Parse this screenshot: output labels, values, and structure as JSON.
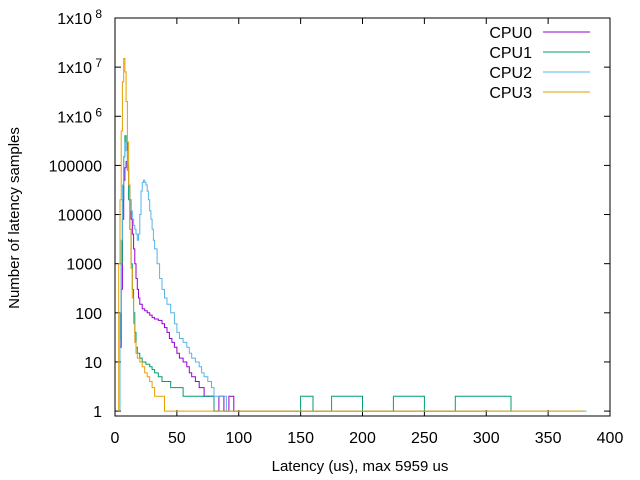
{
  "chart_data": {
    "type": "line",
    "title": "",
    "xlabel": "Latency (us), max 5959 us",
    "ylabel": "Number of latency samples",
    "xlim": [
      0,
      400
    ],
    "ylim_log10": [
      -0.1,
      8
    ],
    "x_ticks": [
      0,
      50,
      100,
      150,
      200,
      250,
      300,
      350,
      400
    ],
    "x_tick_labels": [
      "0",
      "50",
      "100",
      "150",
      "200",
      "250",
      "300",
      "350",
      "400"
    ],
    "y_ticks": [
      {
        "value": 1,
        "label": "1"
      },
      {
        "value": 10,
        "label": "10"
      },
      {
        "value": 100,
        "label": "100"
      },
      {
        "value": 1000,
        "label": "1000"
      },
      {
        "value": 10000,
        "label": "10000"
      },
      {
        "value": 100000,
        "label": "100000"
      },
      {
        "value": 1000000,
        "base": "1x10",
        "exp": "6"
      },
      {
        "value": 10000000,
        "base": "1x10",
        "exp": "7"
      },
      {
        "value": 100000000,
        "base": "1x10",
        "exp": "8"
      }
    ],
    "legend_position": "top-right",
    "series": [
      {
        "name": "CPU0",
        "color": "#9400d3",
        "points": [
          [
            4,
            20
          ],
          [
            5,
            300
          ],
          [
            6,
            8000
          ],
          [
            7,
            50000
          ],
          [
            8,
            90000
          ],
          [
            9,
            120000
          ],
          [
            10,
            80000
          ],
          [
            11,
            40000
          ],
          [
            12,
            20000
          ],
          [
            13,
            8000
          ],
          [
            14,
            4000
          ],
          [
            15,
            2000
          ],
          [
            16,
            1000
          ],
          [
            17,
            500
          ],
          [
            18,
            300
          ],
          [
            19,
            200
          ],
          [
            20,
            150
          ],
          [
            22,
            120
          ],
          [
            24,
            110
          ],
          [
            26,
            100
          ],
          [
            28,
            90
          ],
          [
            30,
            80
          ],
          [
            32,
            75
          ],
          [
            35,
            70
          ],
          [
            38,
            60
          ],
          [
            40,
            50
          ],
          [
            42,
            40
          ],
          [
            44,
            30
          ],
          [
            46,
            25
          ],
          [
            48,
            20
          ],
          [
            50,
            15
          ],
          [
            52,
            12
          ],
          [
            55,
            10
          ],
          [
            58,
            8
          ],
          [
            60,
            6
          ],
          [
            62,
            5
          ],
          [
            65,
            4
          ],
          [
            68,
            3
          ],
          [
            70,
            3
          ],
          [
            72,
            2
          ],
          [
            75,
            2
          ],
          [
            78,
            2
          ],
          [
            80,
            1
          ],
          [
            84,
            2
          ],
          [
            88,
            1
          ],
          [
            92,
            2
          ],
          [
            96,
            1
          ],
          [
            100,
            1
          ],
          [
            110,
            1
          ],
          [
            125,
            1
          ],
          [
            150,
            1
          ],
          [
            175,
            1
          ],
          [
            200,
            1
          ],
          [
            225,
            1
          ],
          [
            255,
            1
          ],
          [
            270,
            1
          ],
          [
            300,
            1
          ]
        ]
      },
      {
        "name": "CPU1",
        "color": "#009e73",
        "points": [
          [
            4,
            30
          ],
          [
            5,
            1000
          ],
          [
            6,
            20000
          ],
          [
            7,
            150000
          ],
          [
            8,
            400000
          ],
          [
            9,
            300000
          ],
          [
            10,
            100000
          ],
          [
            11,
            20000
          ],
          [
            12,
            5000
          ],
          [
            13,
            1000
          ],
          [
            14,
            300
          ],
          [
            15,
            100
          ],
          [
            16,
            40
          ],
          [
            17,
            20
          ],
          [
            18,
            15
          ],
          [
            20,
            12
          ],
          [
            22,
            10
          ],
          [
            25,
            9
          ],
          [
            28,
            8
          ],
          [
            30,
            7
          ],
          [
            32,
            6
          ],
          [
            35,
            5
          ],
          [
            38,
            4
          ],
          [
            40,
            4
          ],
          [
            45,
            3
          ],
          [
            50,
            3
          ],
          [
            55,
            2
          ],
          [
            60,
            2
          ],
          [
            65,
            2
          ],
          [
            70,
            2
          ],
          [
            80,
            1
          ],
          [
            90,
            1
          ],
          [
            100,
            1
          ],
          [
            140,
            1
          ],
          [
            150,
            2
          ],
          [
            160,
            1
          ],
          [
            175,
            2
          ],
          [
            200,
            1
          ],
          [
            225,
            2
          ],
          [
            250,
            1
          ],
          [
            275,
            2
          ],
          [
            300,
            2
          ],
          [
            320,
            1
          ]
        ]
      },
      {
        "name": "CPU2",
        "color": "#56b4e9",
        "points": [
          [
            4,
            100
          ],
          [
            5,
            3000
          ],
          [
            6,
            40000
          ],
          [
            7,
            150000
          ],
          [
            8,
            300000
          ],
          [
            9,
            200000
          ],
          [
            10,
            80000
          ],
          [
            11,
            40000
          ],
          [
            12,
            20000
          ],
          [
            13,
            12000
          ],
          [
            14,
            8000
          ],
          [
            15,
            6000
          ],
          [
            16,
            5000
          ],
          [
            17,
            4000
          ],
          [
            18,
            3000
          ],
          [
            19,
            4000
          ],
          [
            20,
            10000
          ],
          [
            21,
            30000
          ],
          [
            22,
            45000
          ],
          [
            23,
            50000
          ],
          [
            24,
            45000
          ],
          [
            25,
            40000
          ],
          [
            26,
            30000
          ],
          [
            27,
            20000
          ],
          [
            28,
            12000
          ],
          [
            29,
            8000
          ],
          [
            30,
            5000
          ],
          [
            31,
            3000
          ],
          [
            32,
            2000
          ],
          [
            34,
            1000
          ],
          [
            36,
            500
          ],
          [
            38,
            300
          ],
          [
            40,
            200
          ],
          [
            42,
            150
          ],
          [
            45,
            100
          ],
          [
            48,
            60
          ],
          [
            50,
            40
          ],
          [
            52,
            30
          ],
          [
            55,
            25
          ],
          [
            58,
            20
          ],
          [
            60,
            15
          ],
          [
            62,
            12
          ],
          [
            65,
            10
          ],
          [
            68,
            8
          ],
          [
            70,
            6
          ],
          [
            72,
            5
          ],
          [
            75,
            4
          ],
          [
            78,
            3
          ],
          [
            80,
            2
          ],
          [
            85,
            2
          ],
          [
            90,
            1
          ],
          [
            100,
            1
          ],
          [
            110,
            1
          ],
          [
            120,
            1
          ],
          [
            300,
            1
          ],
          [
            330,
            1
          ],
          [
            350,
            1
          ],
          [
            375,
            1
          ],
          [
            380,
            1
          ]
        ]
      },
      {
        "name": "CPU3",
        "color": "#e69f00",
        "points": [
          [
            3,
            1000
          ],
          [
            4,
            20000
          ],
          [
            5,
            500000
          ],
          [
            6,
            5000000
          ],
          [
            7,
            15000000
          ],
          [
            8,
            8000000
          ],
          [
            9,
            2000000
          ],
          [
            10,
            300000
          ],
          [
            11,
            40000
          ],
          [
            12,
            5000
          ],
          [
            13,
            800
          ],
          [
            14,
            200
          ],
          [
            15,
            60
          ],
          [
            16,
            25
          ],
          [
            17,
            15
          ],
          [
            18,
            12
          ],
          [
            20,
            10
          ],
          [
            22,
            8
          ],
          [
            24,
            6
          ],
          [
            26,
            5
          ],
          [
            28,
            4
          ],
          [
            30,
            3
          ],
          [
            32,
            2
          ],
          [
            35,
            2
          ],
          [
            38,
            2
          ],
          [
            40,
            1
          ],
          [
            45,
            1
          ],
          [
            50,
            1
          ],
          [
            60,
            1
          ],
          [
            80,
            1
          ],
          [
            100,
            1
          ],
          [
            130,
            1
          ],
          [
            180,
            1
          ],
          [
            220,
            1
          ],
          [
            270,
            1
          ],
          [
            300,
            1
          ],
          [
            340,
            1
          ],
          [
            370,
            1
          ],
          [
            378,
            1
          ]
        ]
      }
    ]
  }
}
